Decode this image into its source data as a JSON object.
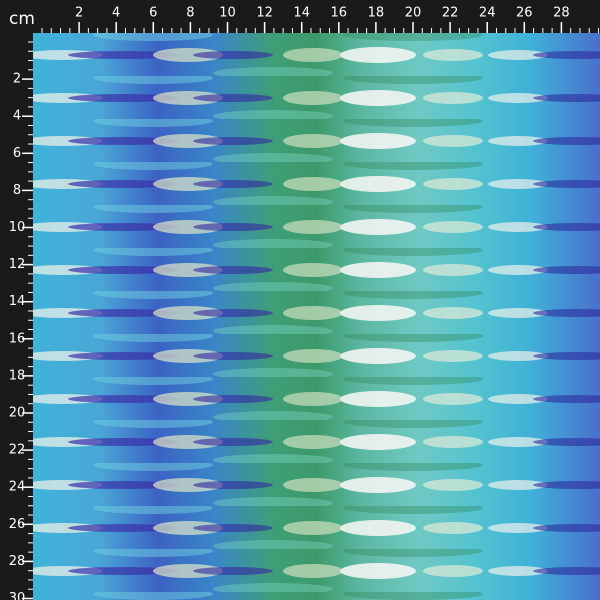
{
  "unit": "cm",
  "top_ruler": {
    "labels": [
      2,
      4,
      6,
      8,
      10,
      12,
      14,
      16,
      18,
      20,
      22,
      24,
      26,
      28
    ]
  },
  "left_ruler": {
    "labels": [
      2,
      4,
      6,
      8,
      10,
      12,
      14,
      16,
      18,
      20,
      22,
      24,
      26,
      28,
      30
    ]
  }
}
